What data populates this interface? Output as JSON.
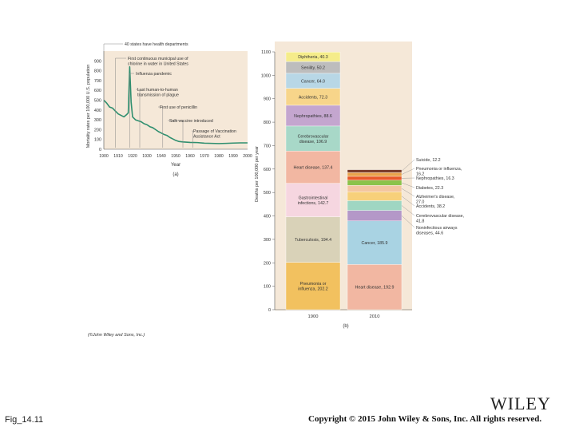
{
  "footer": {
    "figure_label": "Fig_14.11",
    "copyright": "Copyright © 2015 John Wiley & Sons, Inc. All rights reserved.",
    "publisher_logo": "WILEY"
  },
  "panel_a_caption": "(a)",
  "panel_b_caption": "(b)",
  "image_credit": "(©John Wiley and Sons, Inc.)",
  "chart_data": [
    {
      "type": "line",
      "panel": "a",
      "xlabel": "Year",
      "ylabel": "Mortality rates per 100,000 U.S. population",
      "xlim": [
        1900,
        2000
      ],
      "ylim": [
        0,
        1000
      ],
      "x_ticks": [
        "1900",
        "1910",
        "1920",
        "1930",
        "1940",
        "1950",
        "1960",
        "1970",
        "1980",
        "1990",
        "2000"
      ],
      "y_ticks": [
        "0",
        "100",
        "200",
        "300",
        "400",
        "500",
        "600",
        "700",
        "800",
        "900"
      ],
      "series": [
        {
          "color": "#2f8f6f",
          "x": [
            1900,
            1902,
            1904,
            1906,
            1908,
            1910,
            1912,
            1914,
            1916,
            1917,
            1918,
            1919,
            1920,
            1922,
            1924,
            1926,
            1928,
            1930,
            1932,
            1934,
            1936,
            1938,
            1940,
            1942,
            1944,
            1946,
            1948,
            1950,
            1952,
            1955,
            1960,
            1965,
            1970,
            1975,
            1980,
            1985,
            1990,
            1995,
            2000
          ],
          "y": [
            500,
            470,
            430,
            420,
            390,
            360,
            345,
            330,
            355,
            370,
            840,
            480,
            330,
            300,
            290,
            280,
            260,
            250,
            230,
            220,
            200,
            180,
            165,
            150,
            140,
            120,
            105,
            90,
            80,
            75,
            70,
            68,
            62,
            60,
            58,
            60,
            63,
            65,
            65
          ]
        }
      ],
      "annotations": [
        {
          "text": "40 states have health departments",
          "year": 1900
        },
        {
          "text": "First continuous municipal use of chlorine in water in United States",
          "year": 1908
        },
        {
          "text": "Influenza pandemic",
          "year": 1918
        },
        {
          "text": "Last human-to-human transmission of plague",
          "year": 1925
        },
        {
          "text": "First use of penicillin",
          "year": 1941
        },
        {
          "text": "Salk vaccine introduced",
          "year": 1955
        },
        {
          "text": "Passage of Vaccination Assistance Act",
          "year": 1962
        }
      ]
    },
    {
      "type": "bar",
      "stacked": true,
      "panel": "b",
      "ylabel": "Deaths per 100,000 per year",
      "ylim": [
        0,
        1100
      ],
      "y_ticks": [
        "0",
        "100",
        "200",
        "300",
        "400",
        "500",
        "600",
        "700",
        "800",
        "900",
        "1000",
        "1100"
      ],
      "categories": [
        "1900",
        "2010"
      ],
      "stacks": [
        {
          "category": "1900",
          "segments": [
            {
              "label": "Pneumonia or influenza, 202.2",
              "value": 202.2,
              "color": "#f2c15f"
            },
            {
              "label": "Tuberculosis, 194.4",
              "value": 194.4,
              "color": "#d9d2b8"
            },
            {
              "label": "Gastrointestinal infections, 142.7",
              "value": 142.7,
              "color": "#f6d6e0"
            },
            {
              "label": "Heart disease, 137.4",
              "value": 137.4,
              "color": "#f2b7a2"
            },
            {
              "label": "Cerebrovascular disease, 106.9",
              "value": 106.9,
              "color": "#a8d8c8"
            },
            {
              "label": "Nephropathies, 88.6",
              "value": 88.6,
              "color": "#c4a6cf"
            },
            {
              "label": "Accidents, 72.3",
              "value": 72.3,
              "color": "#f7d58a"
            },
            {
              "label": "Cancer, 64.0",
              "value": 64.0,
              "color": "#b8d7e6"
            },
            {
              "label": "Senility, 50.2",
              "value": 50.2,
              "color": "#bdbdbd"
            },
            {
              "label": "Diphtheria, 40.3",
              "value": 40.3,
              "color": "#f5ec8a"
            }
          ]
        },
        {
          "category": "2010",
          "segments": [
            {
              "label": "Heart disease, 192.9",
              "value": 192.9,
              "color": "#f2b7a2",
              "label_inside": true
            },
            {
              "label": "Cancer, 185.9",
              "value": 185.9,
              "color": "#a9d3e3",
              "label_inside": true
            },
            {
              "label": "Noninfectious airways diseases, 44.6",
              "value": 44.6,
              "color": "#b498c8"
            },
            {
              "label": "Cerebrovascular disease, 41.8",
              "value": 41.8,
              "color": "#9fd6c2"
            },
            {
              "label": "Accidents, 38.2",
              "value": 38.2,
              "color": "#f7d07a"
            },
            {
              "label": "Alzheimer's disease, 27.0",
              "value": 27.0,
              "color": "#f3c6a0"
            },
            {
              "label": "Diabetes, 22.3",
              "value": 22.3,
              "color": "#8bc34a"
            },
            {
              "label": "Nephropathies, 16.3",
              "value": 16.3,
              "color": "#e85a2a"
            },
            {
              "label": "Pneumonia or influenza, 16.2",
              "value": 16.2,
              "color": "#e9a24a"
            },
            {
              "label": "Suicide, 12.2",
              "value": 12.2,
              "color": "#7a3b2a"
            }
          ]
        }
      ]
    }
  ]
}
